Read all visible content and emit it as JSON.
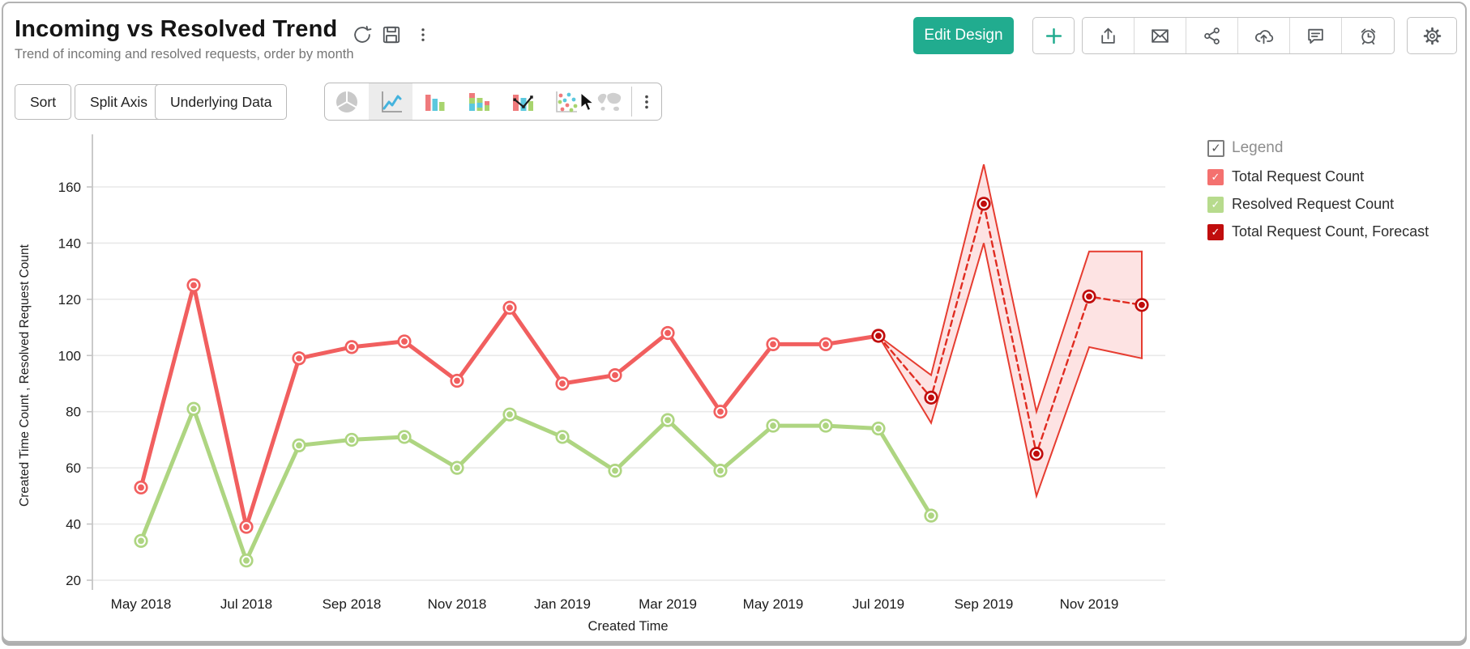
{
  "header": {
    "title": "Incoming vs Resolved Trend",
    "subtitle": "Trend of incoming and resolved requests, order by month"
  },
  "header_actions": {
    "edit_design_label": "Edit Design",
    "icons": [
      "refresh-icon",
      "save-icon",
      "kebab-menu-icon",
      "plus-icon",
      "export-icon",
      "email-icon",
      "share-icon",
      "cloud-upload-icon",
      "comment-icon",
      "alarm-icon",
      "settings-gear-icon"
    ]
  },
  "toolbar": {
    "sort_label": "Sort",
    "split_axis_label": "Split Axis",
    "underlying_data_label": "Underlying Data",
    "chart_types": [
      "pie",
      "line",
      "bar",
      "stacked-bar",
      "combo",
      "scatter",
      "map"
    ],
    "selected_chart_type": "line"
  },
  "legend": {
    "title": "Legend",
    "title_checked": true,
    "items": [
      {
        "label": "Total Request Count",
        "color": "#f4716f",
        "checked": true
      },
      {
        "label": "Resolved Request Count",
        "color": "#b7db8d",
        "checked": true
      },
      {
        "label": "Total Request Count, Forecast",
        "color": "#c00d0d",
        "checked": true
      }
    ]
  },
  "chart_data": {
    "type": "line",
    "title": "Incoming vs Resolved Trend",
    "x": [
      "May 2018",
      "Jun 2018",
      "Jul 2018",
      "Aug 2018",
      "Sep 2018",
      "Oct 2018",
      "Nov 2018",
      "Dec 2018",
      "Jan 2019",
      "Feb 2019",
      "Mar 2019",
      "Apr 2019",
      "May 2019",
      "Jun 2019",
      "Jul 2019",
      "Aug 2019",
      "Sep 2019",
      "Oct 2019",
      "Nov 2019",
      "Dec 2019"
    ],
    "x_tick_labels": [
      "May 2018",
      "Jul 2018",
      "Sep 2018",
      "Nov 2018",
      "Jan 2019",
      "Mar 2019",
      "May 2019",
      "Jul 2019",
      "Sep 2019",
      "Nov 2019"
    ],
    "xlabel": "Created Time",
    "ylabel": "Created Time Count , Resolved Request Count",
    "ylim": [
      20,
      172
    ],
    "yticks": [
      20,
      40,
      60,
      80,
      100,
      120,
      140,
      160
    ],
    "grid": "horizontal",
    "legend_position": "right",
    "series": [
      {
        "name": "Total Request Count",
        "color": "#f15f5f",
        "line_style": "solid",
        "values": [
          53,
          125,
          39,
          99,
          103,
          105,
          91,
          117,
          90,
          93,
          108,
          80,
          104,
          104,
          107,
          null,
          null,
          null,
          null,
          null
        ]
      },
      {
        "name": "Resolved Request Count",
        "color": "#aed581",
        "line_style": "solid",
        "values": [
          34,
          81,
          27,
          68,
          70,
          71,
          60,
          79,
          71,
          59,
          77,
          59,
          75,
          75,
          74,
          43,
          null,
          null,
          null,
          null
        ]
      },
      {
        "name": "Total Request Count, Forecast",
        "color": "#c00c0c",
        "line_color": "#e02b20",
        "line_style": "dashed",
        "values": [
          null,
          null,
          null,
          null,
          null,
          null,
          null,
          null,
          null,
          null,
          null,
          null,
          null,
          null,
          107,
          85,
          154,
          65,
          121,
          118
        ],
        "band": {
          "fill": "rgba(240,82,82,0.16)",
          "stroke": "#e63c30",
          "upper": [
            null,
            null,
            null,
            null,
            null,
            null,
            null,
            null,
            null,
            null,
            null,
            null,
            null,
            null,
            107,
            93,
            168,
            80,
            137,
            137
          ],
          "lower": [
            null,
            null,
            null,
            null,
            null,
            null,
            null,
            null,
            null,
            null,
            null,
            null,
            null,
            null,
            107,
            76,
            140,
            50,
            103,
            99
          ]
        }
      }
    ]
  }
}
